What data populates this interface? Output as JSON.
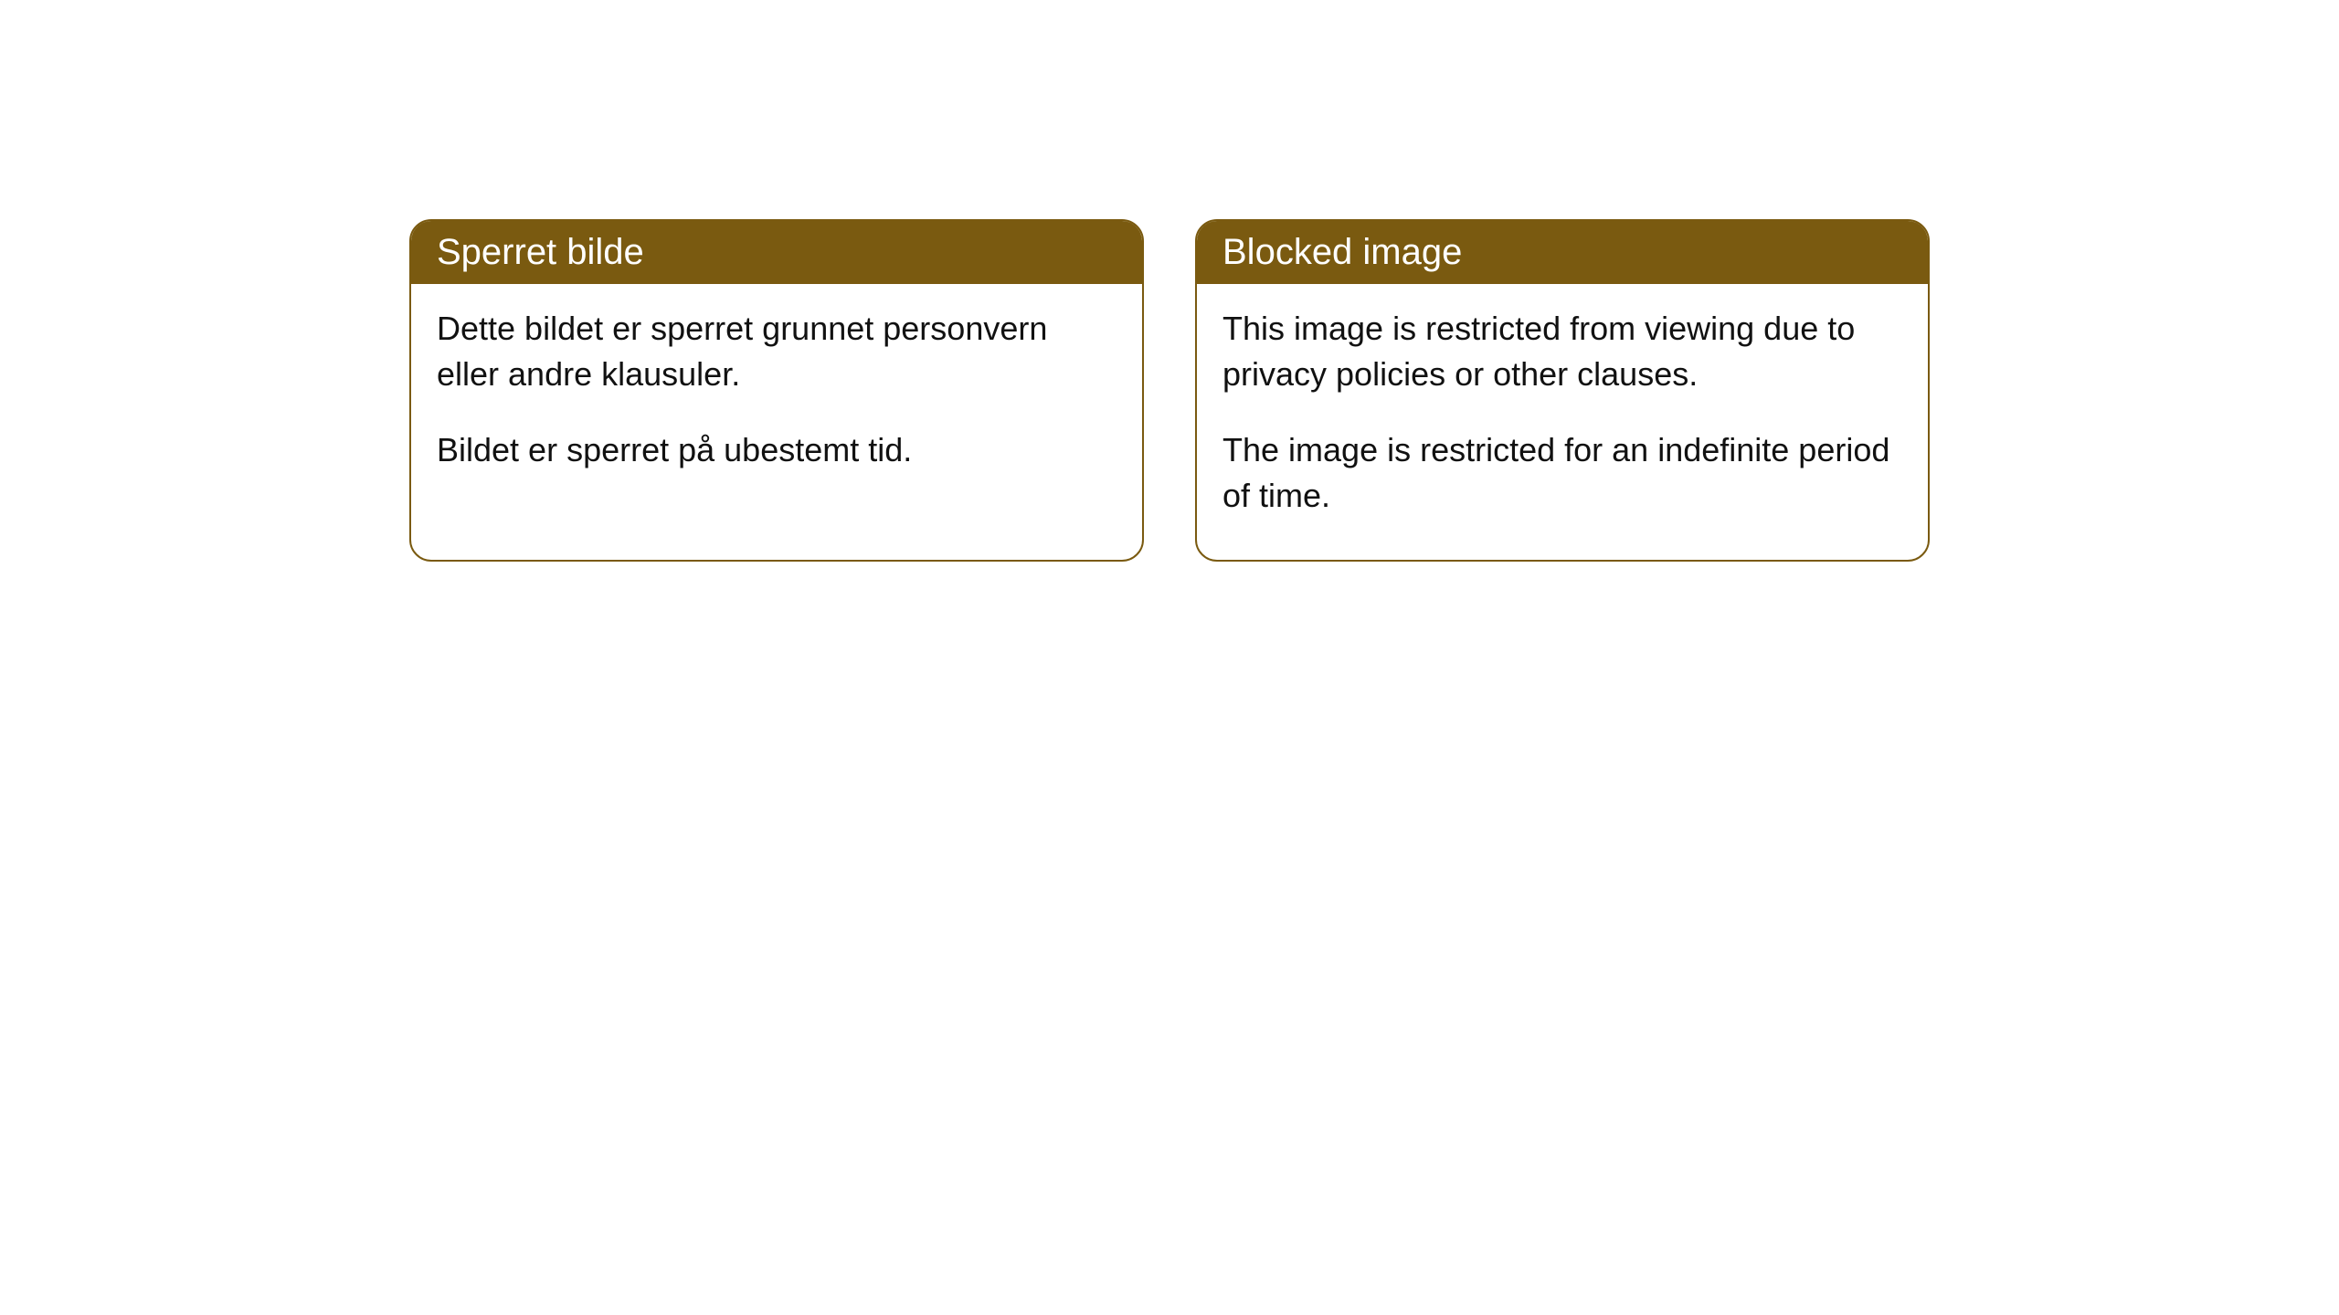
{
  "cards": [
    {
      "title": "Sperret bilde",
      "paragraph1": "Dette bildet er sperret grunnet personvern eller andre klausuler.",
      "paragraph2": "Bildet er sperret på ubestemt tid."
    },
    {
      "title": "Blocked image",
      "paragraph1": "This image is restricted from viewing due to privacy policies or other clauses.",
      "paragraph2": "The image is restricted for an indefinite period of time."
    }
  ],
  "styling": {
    "header_background": "#7a5a10",
    "header_text_color": "#ffffff",
    "border_color": "#7a5a10",
    "body_background": "#ffffff",
    "body_text_color": "#111111",
    "border_radius": 24,
    "header_fontsize": 40,
    "body_fontsize": 36
  }
}
